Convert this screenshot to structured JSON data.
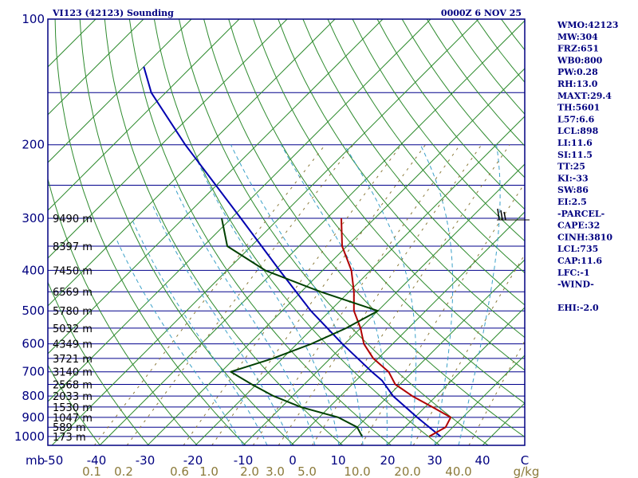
{
  "header": {
    "station": "VI123 (42123) Sounding",
    "datetime": "0000Z  6 NOV 25"
  },
  "indices": [
    "WMO:42123",
    "MW:304",
    "FRZ:651",
    "WB0:800",
    "PW:0.28",
    "RH:13.0",
    "MAXT:29.4",
    "TH:5601",
    "L57:6.6",
    "LCL:898",
    "LI:11.6",
    "SI:11.5",
    "TT:25",
    "KI:-33",
    "SW:86",
    "EI:2.5",
    "-PARCEL-",
    "CAPE:32",
    "CINH:3810",
    "LCL:735",
    "CAP:11.6",
    "LFC:-1",
    "-WIND-",
    "",
    "EHI:-2.0"
  ],
  "colors": {
    "axes": "#000080",
    "isobars": "#00008b",
    "isotherms": "#2e8b2e",
    "dry_adiabats": "#2e8b2e",
    "moist_adiabats": "#3aa0c8",
    "mixing_ratio": "#8b7a3a",
    "temperature": "#b00000",
    "dewpoint": "#004000",
    "parcel": "#0000b0"
  },
  "chart_data": {
    "type": "skew-t",
    "pressure_unit": "mb",
    "temperature_unit": "C",
    "mixing_ratio_unit": "g/kg",
    "pressure_range": [
      1000,
      100
    ],
    "pressure_ticks": [
      100,
      200,
      300,
      400,
      500,
      600,
      700,
      800,
      900,
      1000
    ],
    "temperature_ticks": [
      "-50",
      "-40",
      "-30",
      "-20",
      "-10",
      "0",
      "10",
      "20",
      "30",
      "40",
      "C"
    ],
    "mixing_ratio_labels": [
      "0.1",
      "0.2",
      "0.6",
      "1.0",
      "2.0",
      "3.0",
      "5.0",
      "10.0",
      "20.0",
      "40.0"
    ],
    "height_labels": [
      {
        "p": 300,
        "label": "9490 m"
      },
      {
        "p": 350,
        "label": "8397 m"
      },
      {
        "p": 400,
        "label": "7450 m"
      },
      {
        "p": 450,
        "label": "6569 m"
      },
      {
        "p": 500,
        "label": "5780 m"
      },
      {
        "p": 550,
        "label": "5032 m"
      },
      {
        "p": 600,
        "label": "4349 m"
      },
      {
        "p": 650,
        "label": "3721 m"
      },
      {
        "p": 700,
        "label": "3140 m"
      },
      {
        "p": 750,
        "label": "2568 m"
      },
      {
        "p": 800,
        "label": "2033 m"
      },
      {
        "p": 850,
        "label": "1530 m"
      },
      {
        "p": 900,
        "label": "1047 m"
      },
      {
        "p": 950,
        "label": "589 m"
      },
      {
        "p": 1000,
        "label": "173 m"
      }
    ],
    "temperature_profile": [
      {
        "p": 1000,
        "t": 27
      },
      {
        "p": 950,
        "t": 28.5
      },
      {
        "p": 900,
        "t": 27.5
      },
      {
        "p": 850,
        "t": 21.5
      },
      {
        "p": 800,
        "t": 15
      },
      {
        "p": 750,
        "t": 9
      },
      {
        "p": 700,
        "t": 5
      },
      {
        "p": 650,
        "t": -1
      },
      {
        "p": 600,
        "t": -6
      },
      {
        "p": 550,
        "t": -10
      },
      {
        "p": 500,
        "t": -15
      },
      {
        "p": 450,
        "t": -19
      },
      {
        "p": 400,
        "t": -24
      },
      {
        "p": 350,
        "t": -31
      },
      {
        "p": 300,
        "t": -37
      }
    ],
    "dewpoint_profile": [
      {
        "p": 1000,
        "t": 13
      },
      {
        "p": 950,
        "t": 10
      },
      {
        "p": 900,
        "t": 4
      },
      {
        "p": 850,
        "t": -6
      },
      {
        "p": 800,
        "t": -14
      },
      {
        "p": 750,
        "t": -21
      },
      {
        "p": 700,
        "t": -28
      },
      {
        "p": 650,
        "t": -22
      },
      {
        "p": 600,
        "t": -17
      },
      {
        "p": 550,
        "t": -13
      },
      {
        "p": 500,
        "t": -10
      },
      {
        "p": 450,
        "t": -26
      },
      {
        "p": 400,
        "t": -42
      },
      {
        "p": 350,
        "t": -55
      },
      {
        "p": 300,
        "t": -62
      }
    ],
    "parcel_profile": [
      {
        "p": 1000,
        "t": 29.4
      },
      {
        "p": 900,
        "t": 20.5
      },
      {
        "p": 800,
        "t": 11
      },
      {
        "p": 735,
        "t": 5.5
      },
      {
        "p": 700,
        "t": 1.5
      },
      {
        "p": 600,
        "t": -10.5
      },
      {
        "p": 500,
        "t": -24
      },
      {
        "p": 400,
        "t": -39
      },
      {
        "p": 300,
        "t": -58
      },
      {
        "p": 200,
        "t": -85
      },
      {
        "p": 150,
        "t": -103
      },
      {
        "p": 130,
        "t": -110
      }
    ],
    "wind_profile": [
      {
        "p": 300,
        "label": "barbs"
      }
    ]
  }
}
